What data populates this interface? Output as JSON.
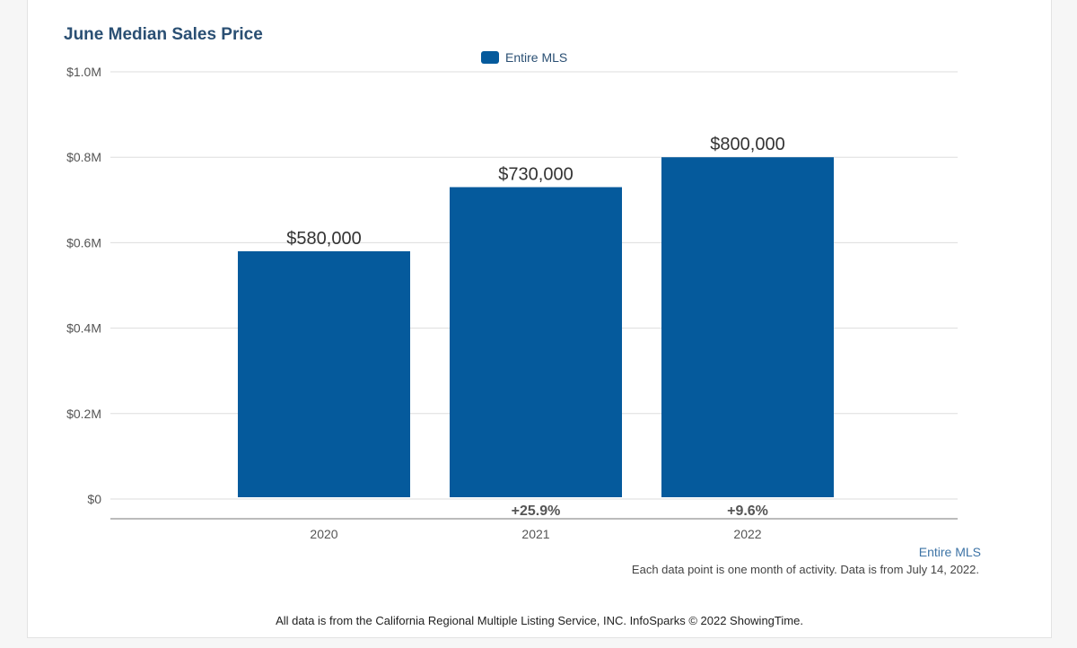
{
  "chart_data": {
    "type": "bar",
    "title": "June Median Sales Price",
    "legend": [
      "Entire MLS"
    ],
    "legend_position": "top-center",
    "categories": [
      "2020",
      "2021",
      "2022"
    ],
    "series": [
      {
        "name": "Entire MLS",
        "values": [
          580000,
          730000,
          800000
        ],
        "labels": [
          "$580,000",
          "$730,000",
          "$800,000"
        ],
        "color": "#055a9c"
      }
    ],
    "change_labels": [
      "",
      "+25.9%",
      "+9.6%"
    ],
    "ylim": [
      0,
      1000000
    ],
    "yticks": [
      {
        "value": 0,
        "label": "$0"
      },
      {
        "value": 200000,
        "label": "$0.2M"
      },
      {
        "value": 400000,
        "label": "$0.4M"
      },
      {
        "value": 600000,
        "label": "$0.6M"
      },
      {
        "value": 800000,
        "label": "$0.8M"
      },
      {
        "value": 1000000,
        "label": "$1.0M"
      }
    ],
    "grid": true,
    "xlabel": "",
    "ylabel": ""
  },
  "legend_note": "Entire MLS",
  "footnote": "Each data point is one month of activity. Data is from July 14, 2022.",
  "source": "All data is from the California Regional Multiple Listing Service, INC. InfoSparks © 2022 ShowingTime.",
  "colors": {
    "bar": "#055a9c",
    "title": "#2a4f73",
    "grid": "#dddddd"
  }
}
